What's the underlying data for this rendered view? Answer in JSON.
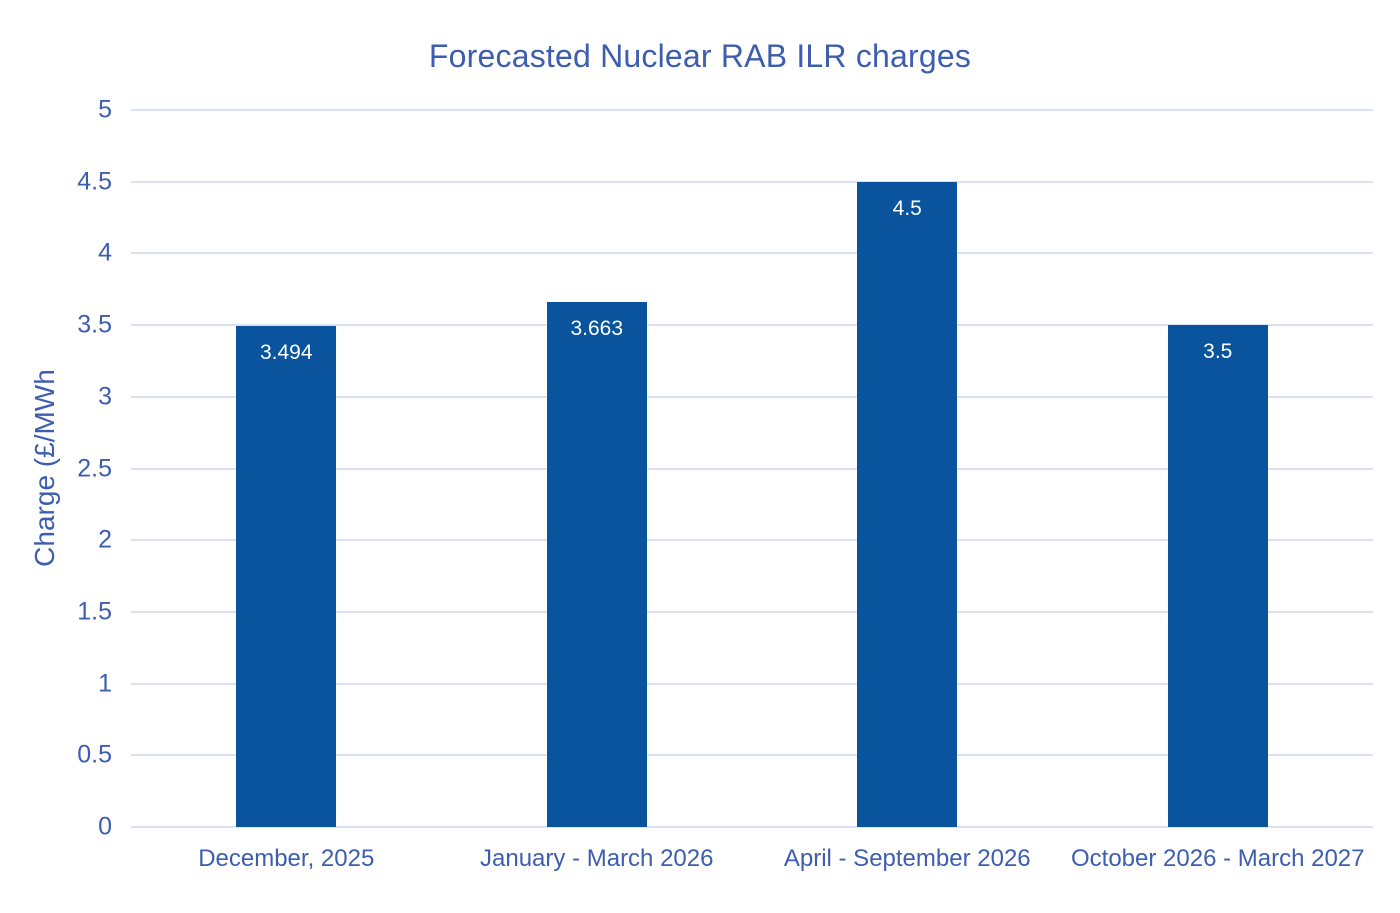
{
  "chart_data": {
    "type": "bar",
    "title": "Forecasted Nuclear RAB ILR charges",
    "xlabel": "",
    "ylabel": "Charge (£/MWh",
    "categories": [
      "December, 2025",
      "January - March 2026",
      "April - September 2026",
      "October 2026 - March 2027"
    ],
    "values": [
      3.494,
      3.663,
      4.5,
      3.5
    ],
    "value_labels": [
      "3.494",
      "3.663",
      "4.5",
      "3.5"
    ],
    "ylim": [
      0,
      5
    ],
    "ytick_step": 0.5,
    "yticks": [
      "0",
      "0.5",
      "1",
      "1.5",
      "2",
      "2.5",
      "3",
      "3.5",
      "4",
      "4.5",
      "5"
    ],
    "grid": "horizontal",
    "legend_position": "none",
    "colors": {
      "bar": "#09549C",
      "text": "#3D5EAE",
      "gridline": "#D9E1F2",
      "data_label": "#FFFFFF",
      "background": "#FFFFFF"
    }
  }
}
